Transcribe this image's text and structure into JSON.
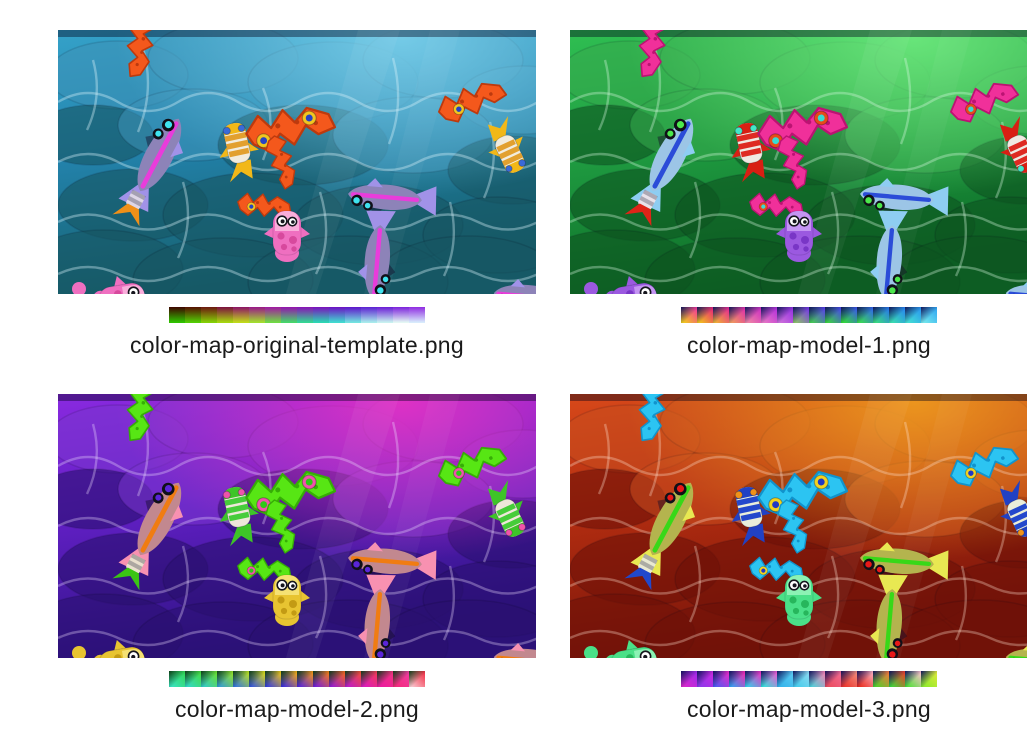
{
  "panels": [
    {
      "id": "original-template",
      "caption": "color-map-original-template.png",
      "colorbar": {
        "style": "vertical",
        "corner": "rgba(20,4,4,0.9)",
        "tiles": [
          [
            "#3f0400",
            "#2fc400"
          ],
          [
            "#571002",
            "#52cf04"
          ],
          [
            "#6d1810",
            "#84d206"
          ],
          [
            "#7d0f3e",
            "#a6d80e"
          ],
          [
            "#8d1266",
            "#c0dc1a"
          ],
          [
            "#991688",
            "#a2df2e"
          ],
          [
            "#a017a2",
            "#6fdc44"
          ],
          [
            "#9412ae",
            "#46d86a"
          ],
          [
            "#8811b6",
            "#34d894"
          ],
          [
            "#7a10bd",
            "#2cd8b4"
          ],
          [
            "#6b10c4",
            "#40dcd0"
          ],
          [
            "#5d14cb",
            "#72e4e0"
          ],
          [
            "#5b20d2",
            "#a8ecec"
          ],
          [
            "#6a1cd6",
            "#c8f2f0"
          ],
          [
            "#7c22dc",
            "#e4f8f4"
          ],
          [
            "#8f2ce2",
            "#d8ecfc"
          ]
        ]
      },
      "palette": {
        "bgTop": "#35a2c9",
        "bgMid": "#2383ad",
        "bgBottom": "#155f6b",
        "glow": "#7fd4ef",
        "rockLight": "#3e93b8",
        "rockDark": "#175663",
        "line": "rgba(215,242,250,0.38)",
        "zig": "#f4581c",
        "zigDark": "#bd3a0e",
        "ringOuter": "#f2c51f",
        "ringInner": "#2743c4",
        "body": "#8d83b8",
        "stripe": "#e93cdb",
        "tailFin": "#a192e8",
        "eyeIris": "#3fe3ee",
        "stripedA": "#e2a02f",
        "stripedB": "#f2ecdd",
        "headAccent": "#3a6ad8",
        "stripedTail": "#f2b818",
        "squidBody": "#ef6fc0",
        "squidLight": "#f9aedb",
        "squidDark": "#d7499d",
        "forkAccent": "#f09018",
        "segStripe": "#ded6e6"
      }
    },
    {
      "id": "model-1",
      "caption": "color-map-model-1.png",
      "colorbar": {
        "style": "diag",
        "corner": "rgba(13,18,88,0.95)",
        "tiles": [
          [
            "#f23b97",
            "#f2cf18"
          ],
          [
            "#e82878",
            "#f2c618"
          ],
          [
            "#e62a92",
            "#f0b431"
          ],
          [
            "#df30aa",
            "#f09d5c"
          ],
          [
            "#cf30c2",
            "#ef88a4"
          ],
          [
            "#b632da",
            "#e878c4"
          ],
          [
            "#9732e2",
            "#cf72da"
          ],
          [
            "#7838e8",
            "#8cc465"
          ],
          [
            "#5840e8",
            "#44d04c"
          ],
          [
            "#4848e8",
            "#3ad83a"
          ],
          [
            "#3a58e8",
            "#32e032"
          ],
          [
            "#3068e8",
            "#3ae04a"
          ],
          [
            "#2878e8",
            "#3ae07c"
          ],
          [
            "#2888f0",
            "#3ae2ac"
          ],
          [
            "#2a98f0",
            "#44e2d2"
          ],
          [
            "#32a8f2",
            "#76eaec"
          ]
        ]
      },
      "palette": {
        "bgTop": "#2fbf52",
        "bgMid": "#1f9c41",
        "bgBottom": "#0e6d28",
        "glow": "#72ef82",
        "rockLight": "#37aa4e",
        "rockDark": "#0d5420",
        "line": "rgba(219,250,226,0.35)",
        "zig": "#f0309a",
        "zigDark": "#bb1372",
        "ringOuter": "#e84a18",
        "ringInner": "#38dcd2",
        "body": "#9cc5e6",
        "stripe": "#2b4cd8",
        "tailFin": "#8ecdf2",
        "eyeIris": "#4ce84c",
        "stripedA": "#de2a22",
        "stripedB": "#efe9e2",
        "headAccent": "#41e8c9",
        "stripedTail": "#d81f13",
        "squidBody": "#9b59e0",
        "squidLight": "#c495f2",
        "squidDark": "#7936c6",
        "forkAccent": "#df2418",
        "segStripe": "#e9e2ea"
      }
    },
    {
      "id": "model-2",
      "caption": "color-map-model-2.png",
      "colorbar": {
        "style": "diag",
        "corner": "rgba(10,58,20,0.95)",
        "tiles": [
          [
            "#32d85a",
            "#3ae2c2"
          ],
          [
            "#44dc42",
            "#32d8ca"
          ],
          [
            "#6ae032",
            "#32c8ca"
          ],
          [
            "#92e22a",
            "#329ad8"
          ],
          [
            "#bae222",
            "#3272e2"
          ],
          [
            "#dada1a",
            "#3252e2"
          ],
          [
            "#eac21a",
            "#323ae2"
          ],
          [
            "#f2aa1a",
            "#3a2ae2"
          ],
          [
            "#f2921a",
            "#5222e2"
          ],
          [
            "#f27a1a",
            "#7219e0"
          ],
          [
            "#f26222",
            "#9219d8"
          ],
          [
            "#f24a3a",
            "#ba19d0"
          ],
          [
            "#f23a5a",
            "#da19c2"
          ],
          [
            "#f23282",
            "#ea19a2"
          ],
          [
            "#f23aa2",
            "#f22a7a"
          ],
          [
            "#f23249",
            "#f9cad2"
          ]
        ]
      },
      "palette": {
        "bgTop": "#8a2ae0",
        "bgMid": "#611fc4",
        "bgBottom": "#2d1383",
        "glow": "#ef32c3",
        "rockLight": "#7b36cf",
        "rockDark": "#2a1070",
        "line": "rgba(236,221,255,0.33)",
        "zig": "#57e614",
        "zigDark": "#36ad06",
        "ringOuter": "#f053ab",
        "ringInner": "#2fc818",
        "body": "#c2888f",
        "stripe": "#f07c12",
        "tailFin": "#f891b1",
        "eyeIris": "#5a25d8",
        "stripedA": "#46cc3a",
        "stripedB": "#efe7da",
        "headAccent": "#f053ab",
        "stripedTail": "#3ec428",
        "squidBody": "#e8c431",
        "squidLight": "#f5e173",
        "squidDark": "#c39b14",
        "forkAccent": "#3ac414",
        "segStripe": "#eae0cd"
      }
    },
    {
      "id": "model-3",
      "caption": "color-map-model-3.png",
      "colorbar": {
        "style": "diag",
        "corner": "rgba(13,16,88,0.95)",
        "tiles": [
          [
            "#a229ea",
            "#da29ca"
          ],
          [
            "#ca29e2",
            "#8a3aea"
          ],
          [
            "#ea29ca",
            "#4a5af2"
          ],
          [
            "#f229b2",
            "#32a2f2"
          ],
          [
            "#ea32c2",
            "#32d2ea"
          ],
          [
            "#ea5ad2",
            "#32e2da"
          ],
          [
            "#5acaf2",
            "#32b2ea"
          ],
          [
            "#8adaf2",
            "#42caea"
          ],
          [
            "#f282b2",
            "#4ad2da"
          ],
          [
            "#f26a92",
            "#ea4a5a"
          ],
          [
            "#f28a7a",
            "#ea322a"
          ],
          [
            "#f9aaba",
            "#ea2919"
          ],
          [
            "#f27a3a",
            "#4ad22a"
          ],
          [
            "#ea422a",
            "#3ada3a"
          ],
          [
            "#f9c2ca",
            "#4ae232"
          ],
          [
            "#dae93a",
            "#8aea2a"
          ]
        ]
      },
      "palette": {
        "bgTop": "#d8491a",
        "bgMid": "#b12c10",
        "bgBottom": "#77140a",
        "glow": "#f2a31f",
        "rockLight": "#c94e1f",
        "rockDark": "#6e1108",
        "line": "rgba(255,226,205,0.33)",
        "zig": "#2cc4f2",
        "zigDark": "#1193cc",
        "ringOuter": "#f2d21f",
        "ringInner": "#2138c4",
        "body": "#b4b44e",
        "stripe": "#38d818",
        "tailFin": "#e8e852",
        "eyeIris": "#e81818",
        "stripedA": "#2448cc",
        "stripedB": "#eaeeda",
        "headAccent": "#f0921a",
        "stripedTail": "#2141c4",
        "squidBody": "#4ae088",
        "squidLight": "#8cf2b4",
        "squidDark": "#27b65c",
        "forkAccent": "#2148cc",
        "segStripe": "#e9e9d2"
      }
    }
  ]
}
